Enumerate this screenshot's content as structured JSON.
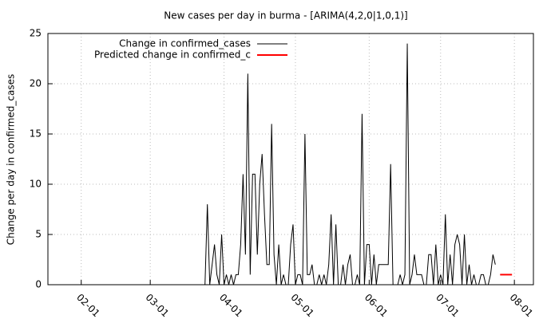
{
  "chart_data": {
    "type": "line",
    "title": "New cases per day in burma -  [ARIMA(4,2,0|1,0,1)]",
    "y_label": "Change per day in confirmed_cases",
    "xlim": [
      "01-18",
      "08-09"
    ],
    "xticks": [
      "02-01",
      "03-01",
      "04-01",
      "05-01",
      "06-01",
      "07-01",
      "08-01"
    ],
    "ylim": [
      0,
      25
    ],
    "yticks": [
      0,
      5,
      10,
      15,
      20,
      25
    ],
    "grid": true,
    "legend": "top",
    "series": [
      {
        "name": "Change in confirmed_cases",
        "color": "#000000",
        "x": [
          "01-18",
          "03-22",
          "03-23",
          "03-24",
          "03-25",
          "03-26",
          "03-27",
          "03-28",
          "03-29",
          "03-30",
          "03-31",
          "04-01",
          "04-02",
          "04-03",
          "04-04",
          "04-05",
          "04-06",
          "04-07",
          "04-08",
          "04-09",
          "04-10",
          "04-11",
          "04-12",
          "04-13",
          "04-14",
          "04-15",
          "04-16",
          "04-17",
          "04-18",
          "04-19",
          "04-20",
          "04-21",
          "04-22",
          "04-23",
          "04-24",
          "04-25",
          "04-26",
          "04-27",
          "04-28",
          "04-29",
          "04-30",
          "05-01",
          "05-02",
          "05-03",
          "05-04",
          "05-05",
          "05-06",
          "05-07",
          "05-08",
          "05-09",
          "05-10",
          "05-11",
          "05-12",
          "05-13",
          "05-14",
          "05-15",
          "05-16",
          "05-17",
          "05-18",
          "05-19",
          "05-20",
          "05-21",
          "05-22",
          "05-23",
          "05-24",
          "05-25",
          "05-26",
          "05-27",
          "05-28",
          "05-29",
          "05-30",
          "05-31",
          "06-01",
          "06-02",
          "06-03",
          "06-04",
          "06-05",
          "06-06",
          "06-07",
          "06-08",
          "06-09",
          "06-10",
          "06-11",
          "06-12",
          "06-13",
          "06-14",
          "06-15",
          "06-16",
          "06-17",
          "06-18",
          "06-19",
          "06-20",
          "06-21",
          "06-22",
          "06-23",
          "06-24",
          "06-25",
          "06-26",
          "06-27",
          "06-28",
          "06-29",
          "06-30",
          "07-01",
          "07-02",
          "07-03",
          "07-04",
          "07-05",
          "07-06",
          "07-07",
          "07-08",
          "07-09",
          "07-10",
          "07-11",
          "07-12",
          "07-13",
          "07-14",
          "07-15",
          "07-16",
          "07-17",
          "07-18",
          "07-19",
          "07-20",
          "07-21",
          "07-22",
          "07-23",
          "07-24"
        ],
        "values": [
          0,
          0,
          0,
          0,
          8,
          0,
          2,
          4,
          1,
          0,
          5,
          0,
          1,
          0,
          1,
          0,
          1,
          1,
          4,
          11,
          3,
          21,
          1,
          11,
          11,
          3,
          10,
          13,
          7,
          2,
          2,
          16,
          3,
          0,
          4,
          0,
          1,
          0,
          0,
          4,
          6,
          0,
          1,
          1,
          0,
          15,
          1,
          1,
          2,
          0,
          0,
          1,
          0,
          1,
          0,
          2,
          7,
          0,
          6,
          0,
          0,
          2,
          0,
          2,
          3,
          0,
          0,
          1,
          0,
          17,
          0,
          4,
          4,
          0,
          3,
          0,
          2,
          2,
          2,
          2,
          2,
          12,
          0,
          0,
          0,
          1,
          0,
          1,
          24,
          0,
          1,
          3,
          1,
          1,
          1,
          0,
          0,
          3,
          3,
          0,
          4,
          0,
          1,
          0,
          7,
          0,
          3,
          0,
          4,
          5,
          4,
          0,
          5,
          0,
          2,
          0,
          1,
          0,
          0,
          1,
          1,
          0,
          0,
          1,
          3,
          2
        ]
      },
      {
        "name": "Predicted change in confirmed_c",
        "color": "#ff0000",
        "x": [
          "07-26",
          "07-31"
        ],
        "values": [
          1,
          1
        ]
      }
    ]
  }
}
